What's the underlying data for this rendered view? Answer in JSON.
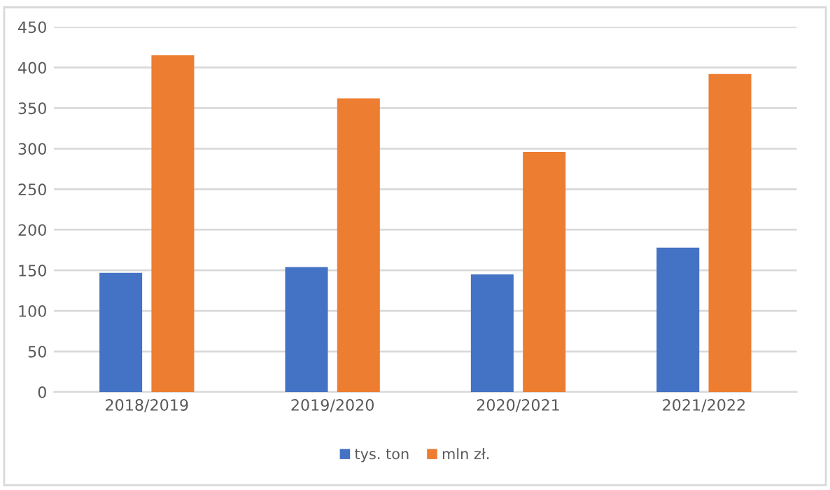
{
  "chart_data": {
    "type": "bar",
    "categories": [
      "2018/2019",
      "2019/2020",
      "2020/2021",
      "2021/2022"
    ],
    "series": [
      {
        "name": "tys. ton",
        "color": "#4472c4",
        "values": [
          147,
          154,
          145,
          178
        ]
      },
      {
        "name": "mln zł.",
        "color": "#ed7d31",
        "values": [
          415,
          362,
          296,
          392
        ]
      }
    ],
    "ylim": [
      0,
      450
    ],
    "yticks": [
      0,
      50,
      100,
      150,
      200,
      250,
      300,
      350,
      400,
      450
    ],
    "grid": "y",
    "legend": "bottom"
  }
}
